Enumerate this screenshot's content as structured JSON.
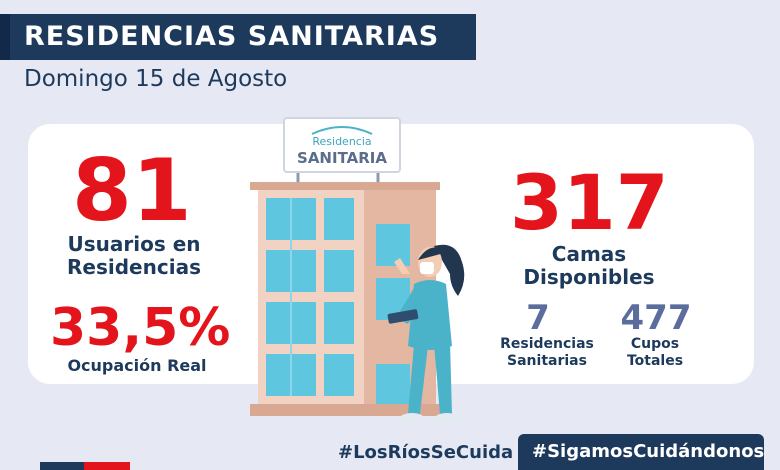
{
  "header": {
    "title": "RESIDENCIAS SANITARIAS",
    "date": "Domingo 15 de Agosto"
  },
  "sign": {
    "line1": "Residencia",
    "line2": "SANITARIA"
  },
  "stats": {
    "users_value": "81",
    "users_label_1": "Usuarios en",
    "users_label_2": "Residencias",
    "occupancy_value": "33,5%",
    "occupancy_label": "Ocupación Real",
    "beds_value": "317",
    "beds_label": "Camas Disponibles",
    "residences_value": "7",
    "residences_label_1": "Residencias",
    "residences_label_2": "Sanitarias",
    "capacity_value": "477",
    "capacity_label_1": "Cupos",
    "capacity_label_2": "Totales"
  },
  "footer": {
    "hashtag_1": "#LosRíosSeCuida",
    "hashtag_2": "#SigamosCuidándonos"
  },
  "colors": {
    "navy": "#1d3a5c",
    "red": "#e3141b",
    "background": "#e6e9f4",
    "stat_blue": "#5a6d9c"
  }
}
